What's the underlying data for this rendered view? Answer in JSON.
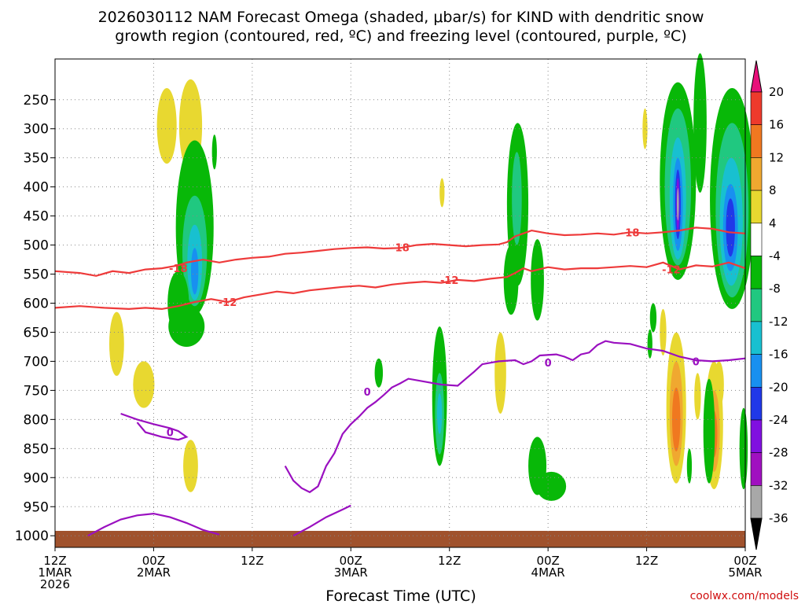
{
  "chart_data": {
    "type": "heatmap",
    "title_line1": "2026030112 NAM Forecast Omega (shaded, μbar/s) for KIND with dendritic snow",
    "title_line2": "growth region (contoured, red, ºC) and freezing level (contoured, purple, ºC)",
    "xlabel": "Forecast Time (UTC)",
    "credit": "coolwx.com/models",
    "xlim": [
      0,
      84
    ],
    "ylim": [
      1020,
      180
    ],
    "x_ticks": [
      {
        "hour": 0,
        "label": "12Z",
        "date": "1MAR",
        "year": "2026"
      },
      {
        "hour": 12,
        "label": "00Z",
        "date": "2MAR"
      },
      {
        "hour": 24,
        "label": "12Z"
      },
      {
        "hour": 36,
        "label": "00Z",
        "date": "3MAR"
      },
      {
        "hour": 48,
        "label": "12Z"
      },
      {
        "hour": 60,
        "label": "00Z",
        "date": "4MAR"
      },
      {
        "hour": 72,
        "label": "12Z"
      },
      {
        "hour": 84,
        "label": "00Z",
        "date": "5MAR"
      }
    ],
    "y_ticks": [
      250,
      300,
      350,
      400,
      450,
      500,
      550,
      600,
      650,
      700,
      750,
      800,
      850,
      900,
      950,
      1000
    ],
    "colorbar": {
      "labels": [
        20,
        16,
        12,
        8,
        4,
        -4,
        -8,
        -12,
        -16,
        -20,
        -24,
        -28,
        -32,
        -36
      ],
      "colors": {
        "gt20": "#e8107a",
        "16_20": "#ee3a2c",
        "12_16": "#f07820",
        "8_12": "#f0a830",
        "4_8": "#e8d830",
        "m4_4": "#ffffff",
        "m8_m4": "#08b808",
        "m12_m8": "#20c880",
        "m16_m12": "#18c0d0",
        "m20_m16": "#1890f0",
        "m24_m20": "#2038e8",
        "m28_m24": "#8010e0",
        "m32_m28": "#a010c0",
        "m36_m32": "#a8a8a8",
        "lt_m36": "#000000"
      }
    },
    "contour_labels": {
      "dgz_minus18": "-18",
      "dgz_minus12": "-12",
      "freezing": "0"
    },
    "series": [
      {
        "name": "-18C isotherm",
        "color": "#ee3a3a",
        "points": [
          [
            0,
            545
          ],
          [
            3,
            548
          ],
          [
            5,
            553
          ],
          [
            7,
            545
          ],
          [
            9,
            548
          ],
          [
            11,
            542
          ],
          [
            13,
            540
          ],
          [
            15,
            535
          ],
          [
            16,
            530
          ],
          [
            18,
            525
          ],
          [
            20,
            530
          ],
          [
            22,
            525
          ],
          [
            24,
            522
          ],
          [
            26,
            520
          ],
          [
            28,
            515
          ],
          [
            30,
            513
          ],
          [
            32,
            510
          ],
          [
            34,
            507
          ],
          [
            36,
            505
          ],
          [
            38,
            504
          ],
          [
            40,
            506
          ],
          [
            42,
            505
          ],
          [
            44,
            500
          ],
          [
            46,
            498
          ],
          [
            48,
            500
          ],
          [
            50,
            502
          ],
          [
            52,
            500
          ],
          [
            54,
            499
          ],
          [
            55,
            495
          ],
          [
            56,
            485
          ],
          [
            57,
            480
          ],
          [
            58,
            475
          ],
          [
            60,
            480
          ],
          [
            62,
            483
          ],
          [
            64,
            482
          ],
          [
            66,
            480
          ],
          [
            68,
            482
          ],
          [
            70,
            478
          ],
          [
            72,
            480
          ],
          [
            74,
            478
          ],
          [
            76,
            475
          ],
          [
            78,
            470
          ],
          [
            80,
            472
          ],
          [
            82,
            478
          ],
          [
            84,
            480
          ]
        ]
      },
      {
        "name": "-12C isotherm",
        "color": "#ee3a3a",
        "points": [
          [
            0,
            608
          ],
          [
            3,
            605
          ],
          [
            6,
            608
          ],
          [
            9,
            610
          ],
          [
            11,
            608
          ],
          [
            13,
            610
          ],
          [
            15,
            605
          ],
          [
            17,
            598
          ],
          [
            19,
            593
          ],
          [
            21,
            598
          ],
          [
            23,
            590
          ],
          [
            25,
            585
          ],
          [
            27,
            580
          ],
          [
            29,
            583
          ],
          [
            31,
            578
          ],
          [
            33,
            575
          ],
          [
            35,
            572
          ],
          [
            37,
            570
          ],
          [
            39,
            573
          ],
          [
            41,
            568
          ],
          [
            43,
            565
          ],
          [
            45,
            563
          ],
          [
            47,
            565
          ],
          [
            49,
            560
          ],
          [
            51,
            562
          ],
          [
            53,
            558
          ],
          [
            55,
            555
          ],
          [
            56,
            548
          ],
          [
            57,
            540
          ],
          [
            58,
            545
          ],
          [
            60,
            538
          ],
          [
            62,
            542
          ],
          [
            64,
            540
          ],
          [
            66,
            540
          ],
          [
            68,
            538
          ],
          [
            70,
            536
          ],
          [
            72,
            538
          ],
          [
            74,
            530
          ],
          [
            76,
            542
          ],
          [
            78,
            535
          ],
          [
            80,
            537
          ],
          [
            82,
            530
          ],
          [
            84,
            540
          ]
        ]
      },
      {
        "name": "0C freezing level (main)",
        "color": "#9a10c0",
        "points": [
          [
            28,
            880
          ],
          [
            29,
            905
          ],
          [
            30,
            918
          ],
          [
            31,
            925
          ],
          [
            32,
            915
          ],
          [
            33,
            880
          ],
          [
            34,
            858
          ],
          [
            35,
            825
          ],
          [
            36,
            808
          ],
          [
            37,
            795
          ],
          [
            38,
            780
          ],
          [
            39,
            770
          ],
          [
            40,
            758
          ],
          [
            41,
            745
          ],
          [
            42,
            738
          ],
          [
            43,
            730
          ],
          [
            45,
            735
          ],
          [
            47,
            740
          ],
          [
            49,
            742
          ],
          [
            50,
            730
          ],
          [
            51,
            718
          ],
          [
            52,
            705
          ],
          [
            54,
            700
          ],
          [
            56,
            698
          ],
          [
            57,
            705
          ],
          [
            58,
            700
          ],
          [
            59,
            690
          ],
          [
            61,
            688
          ],
          [
            62,
            692
          ],
          [
            63,
            698
          ],
          [
            64,
            688
          ],
          [
            65,
            685
          ],
          [
            66,
            672
          ],
          [
            67,
            665
          ],
          [
            68,
            668
          ],
          [
            70,
            670
          ],
          [
            72,
            678
          ],
          [
            74,
            682
          ],
          [
            76,
            692
          ],
          [
            78,
            698
          ],
          [
            80,
            700
          ],
          [
            82,
            698
          ],
          [
            84,
            695
          ]
        ]
      },
      {
        "name": "0C freezing level (west)",
        "color": "#9a10c0",
        "points": [
          [
            8,
            790
          ],
          [
            10,
            800
          ],
          [
            12,
            808
          ],
          [
            14,
            815
          ],
          [
            15,
            820
          ],
          [
            16,
            830
          ],
          [
            15,
            835
          ],
          [
            13,
            830
          ],
          [
            11,
            822
          ],
          [
            10,
            805
          ]
        ]
      },
      {
        "name": "0C freezing level (surface)",
        "color": "#9a10c0",
        "points": [
          [
            4,
            1000
          ],
          [
            6,
            985
          ],
          [
            8,
            972
          ],
          [
            10,
            965
          ],
          [
            12,
            962
          ],
          [
            14,
            968
          ],
          [
            16,
            978
          ],
          [
            18,
            990
          ],
          [
            20,
            998
          ]
        ]
      },
      {
        "name": "0C freezing level (dip)",
        "color": "#9a10c0",
        "points": [
          [
            29,
            1000
          ],
          [
            31,
            985
          ],
          [
            33,
            968
          ],
          [
            35,
            955
          ],
          [
            36,
            948
          ]
        ]
      }
    ],
    "shaded_regions": [
      {
        "c": "4_8",
        "x": 13.6,
        "p": 295,
        "rx": 1.2,
        "rp": 65
      },
      {
        "c": "4_8",
        "x": 16.5,
        "p": 295,
        "rx": 1.4,
        "rp": 80
      },
      {
        "c": "4_8",
        "x": 7.5,
        "p": 670,
        "rx": 0.9,
        "rp": 55
      },
      {
        "c": "4_8",
        "x": 10.8,
        "p": 740,
        "rx": 1.3,
        "rp": 40
      },
      {
        "c": "4_8",
        "x": 16.5,
        "p": 880,
        "rx": 0.9,
        "rp": 45
      },
      {
        "c": "4_8",
        "x": 47.1,
        "p": 410,
        "rx": 0.3,
        "rp": 25
      },
      {
        "c": "4_8",
        "x": 54.2,
        "p": 720,
        "rx": 0.7,
        "rp": 70
      },
      {
        "c": "4_8",
        "x": 71.8,
        "p": 300,
        "rx": 0.3,
        "rp": 35
      },
      {
        "c": "4_8",
        "x": 74,
        "p": 650,
        "rx": 0.4,
        "rp": 40
      },
      {
        "c": "4_8",
        "x": 78.2,
        "p": 760,
        "rx": 0.4,
        "rp": 40
      },
      {
        "c": "4_8",
        "x": 80.8,
        "p": 740,
        "rx": 0.6,
        "rp": 40
      },
      {
        "c": "4_8",
        "x": 75.6,
        "p": 780,
        "rx": 1.2,
        "rp": 130
      },
      {
        "c": "8_12",
        "x": 75.6,
        "p": 790,
        "rx": 0.8,
        "rp": 90
      },
      {
        "c": "12_16",
        "x": 75.6,
        "p": 800,
        "rx": 0.5,
        "rp": 55
      },
      {
        "c": "4_8",
        "x": 80.2,
        "p": 810,
        "rx": 1.1,
        "rp": 110
      },
      {
        "c": "8_12",
        "x": 80.2,
        "p": 820,
        "rx": 0.7,
        "rp": 70
      },
      {
        "c": "12_16",
        "x": 80.2,
        "p": 825,
        "rx": 0.4,
        "rp": 40
      },
      {
        "c": "m8_m4",
        "x": 17,
        "p": 470,
        "rx": 2.3,
        "rp": 150
      },
      {
        "c": "m12_m8",
        "x": 17,
        "p": 510,
        "rx": 1.5,
        "rp": 95
      },
      {
        "c": "m16_m12",
        "x": 17,
        "p": 530,
        "rx": 0.9,
        "rp": 65
      },
      {
        "c": "m20_m16",
        "x": 17,
        "p": 545,
        "rx": 0.45,
        "rp": 40
      },
      {
        "c": "m8_m4",
        "x": 15,
        "p": 600,
        "rx": 1.3,
        "rp": 55
      },
      {
        "c": "m8_m4",
        "x": 19.4,
        "p": 340,
        "rx": 0.3,
        "rp": 30
      },
      {
        "c": "m8_m4",
        "x": 16,
        "p": 640,
        "rx": 2.2,
        "rp": 35
      },
      {
        "c": "m8_m4",
        "x": 39.4,
        "p": 720,
        "rx": 0.5,
        "rp": 25
      },
      {
        "c": "m8_m4",
        "x": 46.8,
        "p": 760,
        "rx": 0.9,
        "rp": 120
      },
      {
        "c": "m12_m8",
        "x": 46.8,
        "p": 790,
        "rx": 0.55,
        "rp": 70
      },
      {
        "c": "m16_m12",
        "x": 46.8,
        "p": 790,
        "rx": 0.3,
        "rp": 35
      },
      {
        "c": "m8_m4",
        "x": 56.3,
        "p": 430,
        "rx": 1.3,
        "rp": 140
      },
      {
        "c": "m12_m8",
        "x": 56.2,
        "p": 420,
        "rx": 0.6,
        "rp": 80
      },
      {
        "c": "m8_m4",
        "x": 55.5,
        "p": 560,
        "rx": 0.9,
        "rp": 60
      },
      {
        "c": "m8_m4",
        "x": 58.7,
        "p": 560,
        "rx": 0.8,
        "rp": 70
      },
      {
        "c": "m8_m4",
        "x": 58.7,
        "p": 880,
        "rx": 1.1,
        "rp": 50
      },
      {
        "c": "m8_m4",
        "x": 60.4,
        "p": 915,
        "rx": 1.8,
        "rp": 25
      },
      {
        "c": "m8_m4",
        "x": 72.8,
        "p": 625,
        "rx": 0.4,
        "rp": 25
      },
      {
        "c": "m8_m4",
        "x": 75.8,
        "p": 390,
        "rx": 2.2,
        "rp": 170
      },
      {
        "c": "m12_m8",
        "x": 75.8,
        "p": 400,
        "rx": 1.6,
        "rp": 135
      },
      {
        "c": "m16_m12",
        "x": 75.8,
        "p": 420,
        "rx": 1.0,
        "rp": 105
      },
      {
        "c": "m20_m16",
        "x": 75.8,
        "p": 430,
        "rx": 0.6,
        "rp": 80
      },
      {
        "c": "m24_m20",
        "x": 75.8,
        "p": 430,
        "rx": 0.35,
        "rp": 60
      },
      {
        "c": "m28_m24",
        "x": 75.8,
        "p": 430,
        "rx": 0.2,
        "rp": 45
      },
      {
        "c": "m36_m32",
        "x": 75.8,
        "p": 430,
        "rx": 0.12,
        "rp": 28
      },
      {
        "c": "m8_m4",
        "x": 78.5,
        "p": 290,
        "rx": 0.8,
        "rp": 120
      },
      {
        "c": "m8_m4",
        "x": 82.4,
        "p": 420,
        "rx": 2.7,
        "rp": 190
      },
      {
        "c": "m12_m8",
        "x": 82.4,
        "p": 440,
        "rx": 2.0,
        "rp": 150
      },
      {
        "c": "m16_m12",
        "x": 82.3,
        "p": 460,
        "rx": 1.4,
        "rp": 110
      },
      {
        "c": "m20_m16",
        "x": 82.2,
        "p": 470,
        "rx": 0.9,
        "rp": 75
      },
      {
        "c": "m24_m20",
        "x": 82.2,
        "p": 470,
        "rx": 0.55,
        "rp": 50
      },
      {
        "c": "m8_m4",
        "x": 79.6,
        "p": 820,
        "rx": 0.7,
        "rp": 90
      },
      {
        "c": "m8_m4",
        "x": 77.2,
        "p": 880,
        "rx": 0.3,
        "rp": 30
      },
      {
        "c": "m8_m4",
        "x": 83.8,
        "p": 850,
        "rx": 0.5,
        "rp": 70
      },
      {
        "c": "m8_m4",
        "x": 72.4,
        "p": 670,
        "rx": 0.3,
        "rp": 25
      }
    ]
  }
}
